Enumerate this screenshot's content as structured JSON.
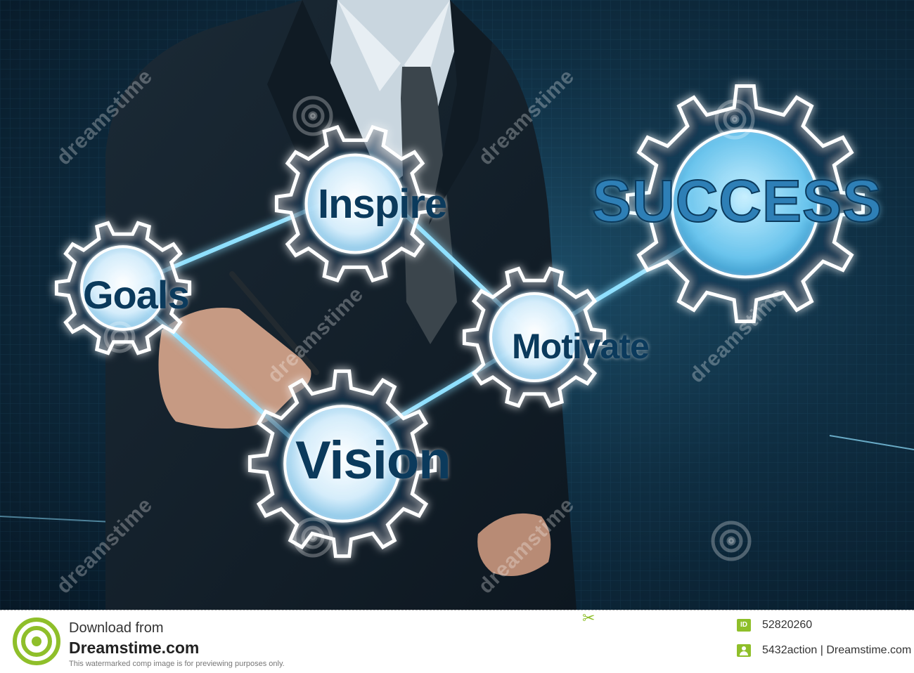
{
  "gears": {
    "goals": "Goals",
    "inspire": "Inspire",
    "motivate": "Motivate",
    "vision": "Vision",
    "success": "SUCCESS"
  },
  "watermark": {
    "text": "dreamstime"
  },
  "footer": {
    "download_from": "Download from",
    "site": "Dreamstime.com",
    "notice": "This watermarked comp image is for previewing purposes only.",
    "id_badge": "ID",
    "id_value": "52820260",
    "author": "5432action | Dreamstime.com"
  },
  "colors": {
    "gear_glow": "#8fe0ff",
    "label_text": "#0b3a5c",
    "footer_accent": "#8fbf2a"
  }
}
